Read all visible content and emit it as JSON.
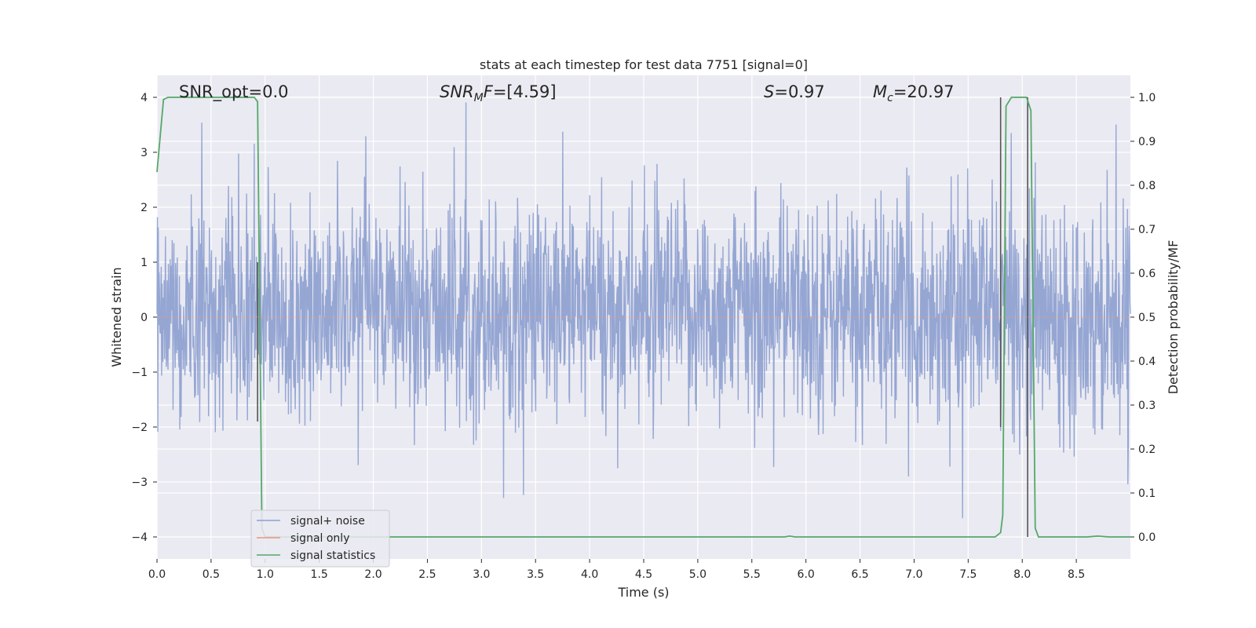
{
  "chart_data": {
    "type": "line",
    "title": "stats at each timestep for test data 7751 [signal=0]",
    "xlabel": "Time (s)",
    "ylabel_left": "Whitened strain",
    "ylabel_right": "Detection probability/MF",
    "xlim": [
      0,
      9.0
    ],
    "ylim_left": [
      -4.4,
      4.4
    ],
    "ylim_right": [
      -0.05,
      1.05
    ],
    "x_ticks": [
      0.0,
      0.5,
      1.0,
      1.5,
      2.0,
      2.5,
      3.0,
      3.5,
      4.0,
      4.5,
      5.0,
      5.5,
      6.0,
      6.5,
      7.0,
      7.5,
      8.0,
      8.5
    ],
    "x_tick_labels": [
      "0.0",
      "0.5",
      "1.0",
      "1.5",
      "2.0",
      "2.5",
      "3.0",
      "3.5",
      "4.0",
      "4.5",
      "5.0",
      "5.5",
      "6.0",
      "6.5",
      "7.0",
      "7.5",
      "8.0",
      "8.5"
    ],
    "y_ticks_left": [
      4,
      3,
      2,
      1,
      0,
      -1,
      -2,
      -3,
      -4
    ],
    "y_tick_labels_left": [
      "4",
      "3",
      "2",
      "1",
      "0",
      "−1",
      "−2",
      "−3",
      "−4"
    ],
    "y_ticks_right": [
      1.0,
      0.9,
      0.8,
      0.7,
      0.6,
      0.5,
      0.4,
      0.3,
      0.2,
      0.1,
      0.0
    ],
    "y_tick_labels_right": [
      "1.0",
      "0.9",
      "0.8",
      "0.7",
      "0.6",
      "0.5",
      "0.4",
      "0.3",
      "0.2",
      "0.1",
      "0.0"
    ],
    "grid": true,
    "legend_position": "lower-left",
    "annotations": [
      {
        "segments": [
          {
            "t": "SNR_opt=0.0",
            "it": false
          }
        ]
      },
      {
        "segments": [
          {
            "t": "SNR",
            "it": true
          },
          {
            "t": "M",
            "it": true,
            "sub": true
          },
          {
            "t": "F",
            "it": true
          },
          {
            "t": "=[4.59]",
            "it": false
          }
        ]
      },
      {
        "segments": [
          {
            "t": "S",
            "it": true
          },
          {
            "t": "=0.97",
            "it": false
          }
        ]
      },
      {
        "segments": [
          {
            "t": "M",
            "it": true
          },
          {
            "t": "c",
            "it": true,
            "sub": true
          },
          {
            "t": "=20.97",
            "it": false
          }
        ]
      }
    ],
    "series": [
      {
        "name": "signal+ noise",
        "axis": "left",
        "color": "#8c9fcf",
        "noise": {
          "samples": 2304,
          "t_start": 0.0,
          "t_end": 9.0,
          "typical_range": [
            -1.8,
            2.2
          ],
          "min": -4.0,
          "max": 4.0,
          "seed": 7751
        }
      },
      {
        "name": "signal only",
        "axis": "left",
        "color": "#e8967a",
        "x": [
          0.0,
          9.0
        ],
        "y": [
          0,
          0
        ]
      },
      {
        "name": "signal statistics",
        "axis": "right",
        "color": "#55a868",
        "x": [
          0.0,
          0.06,
          0.1,
          0.2,
          0.5,
          0.9,
          0.93,
          0.97,
          1.0,
          1.5,
          3.0,
          5.8,
          5.85,
          5.9,
          7.75,
          7.8,
          7.82,
          7.85,
          7.9,
          8.0,
          8.04,
          8.08,
          8.12,
          8.15,
          8.6,
          8.7,
          8.8,
          9.0
        ],
        "y": [
          0.83,
          0.995,
          1.0,
          1.0,
          1.0,
          1.0,
          0.99,
          0.02,
          0.0,
          0.0,
          0.0,
          0.0,
          0.002,
          0.0,
          0.0,
          0.01,
          0.05,
          0.98,
          1.0,
          1.0,
          1.0,
          0.97,
          0.02,
          0.0,
          0.0,
          0.002,
          0.0,
          0.0
        ]
      }
    ],
    "vertical_markers": [
      {
        "x": 0.93,
        "y": [
          1.0,
          -1.9
        ],
        "color": "#555555"
      },
      {
        "x": 7.8,
        "y": [
          4.0,
          -2.0
        ],
        "color": "#555555"
      },
      {
        "x": 8.05,
        "y": [
          4.0,
          -4.0
        ],
        "color": "#555555"
      }
    ]
  }
}
